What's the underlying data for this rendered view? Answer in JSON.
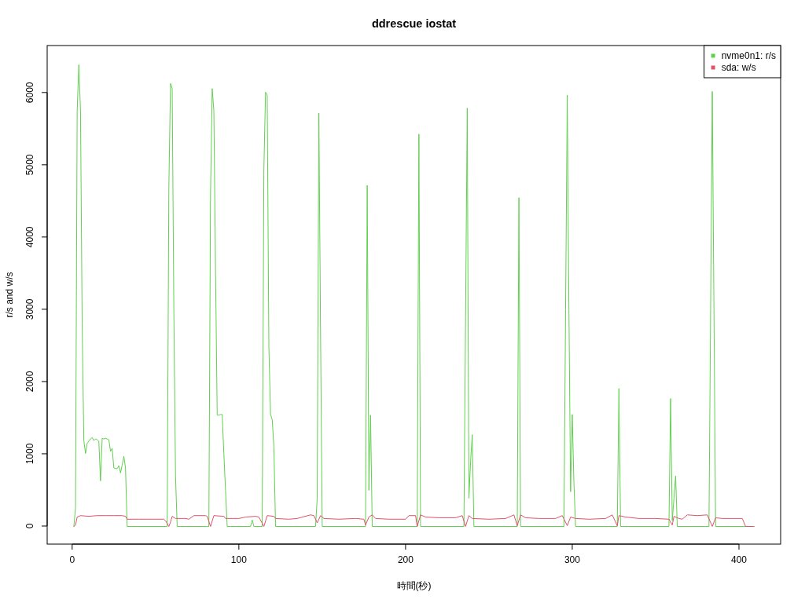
{
  "chart_data": {
    "type": "line",
    "title": "ddrescue iostat",
    "xlabel": "時間(秒)",
    "ylabel": "r/s and w/s",
    "xlim": [
      -15,
      425
    ],
    "ylim": [
      -250,
      6650
    ],
    "xticks": [
      0,
      100,
      200,
      300,
      400
    ],
    "yticks": [
      0,
      1000,
      2000,
      3000,
      4000,
      5000,
      6000
    ],
    "legend": "top right",
    "line_style": "solid",
    "series": [
      {
        "name": "nvme0n1: r/s",
        "color": "#61d04f",
        "x": [
          1,
          2,
          3,
          4,
          5,
          6,
          7,
          8,
          9,
          10,
          11,
          12,
          13,
          14,
          15,
          16,
          17,
          18,
          19,
          20,
          21,
          22,
          23,
          24,
          25,
          26,
          27,
          28,
          29,
          30,
          31,
          32,
          33,
          57,
          58,
          59,
          60,
          61,
          62,
          63,
          81,
          82,
          83,
          84,
          85,
          86,
          87,
          88,
          89,
          90,
          91,
          92,
          93,
          107,
          108,
          109,
          114,
          115,
          116,
          117,
          118,
          119,
          120,
          121,
          122,
          146,
          147,
          148,
          149,
          150,
          176,
          177,
          178,
          179,
          180,
          207,
          208,
          209,
          235,
          236,
          237,
          238,
          239,
          240,
          241,
          267,
          268,
          269,
          295,
          296,
          297,
          298,
          299,
          300,
          301,
          302,
          327,
          328,
          329,
          358,
          359,
          360,
          361,
          362,
          363,
          382,
          383,
          384,
          385,
          386,
          409
        ],
        "values": [
          0,
          250,
          5750,
          6390,
          5750,
          2800,
          1190,
          1010,
          1150,
          1180,
          1210,
          1230,
          1190,
          1210,
          1200,
          1180,
          630,
          1220,
          1210,
          1220,
          1210,
          1200,
          1040,
          1080,
          810,
          800,
          800,
          840,
          740,
          850,
          970,
          810,
          0,
          0,
          4700,
          6130,
          6060,
          3000,
          700,
          0,
          0,
          0,
          4600,
          6060,
          5750,
          3560,
          1540,
          1540,
          1550,
          1550,
          1000,
          500,
          0,
          0,
          90,
          0,
          0,
          4940,
          6010,
          5970,
          2490,
          1550,
          1480,
          1100,
          0,
          0,
          390,
          5720,
          2700,
          0,
          0,
          4720,
          500,
          1540,
          0,
          0,
          5430,
          0,
          0,
          2900,
          5790,
          390,
          900,
          1270,
          0,
          0,
          4550,
          0,
          0,
          3000,
          5970,
          3000,
          480,
          1550,
          600,
          0,
          0,
          1910,
          0,
          0,
          1770,
          80,
          390,
          700,
          0,
          0,
          3000,
          6020,
          3000,
          0,
          0
        ]
      },
      {
        "name": "sda: w/s",
        "color": "#df536b",
        "x": [
          1,
          2,
          3,
          5,
          10,
          15,
          20,
          25,
          30,
          32,
          33,
          40,
          45,
          50,
          55,
          56,
          58,
          59,
          60,
          62,
          68,
          70,
          73,
          80,
          81,
          83,
          85,
          91,
          92,
          100,
          104,
          110,
          112,
          115,
          117,
          121,
          122,
          130,
          135,
          143,
          145,
          147,
          149,
          151,
          160,
          170,
          175,
          176,
          178,
          180,
          182,
          190,
          200,
          202,
          206,
          207,
          209,
          212,
          220,
          230,
          234,
          236,
          238,
          240,
          250,
          260,
          265,
          267,
          269,
          272,
          280,
          290,
          294,
          297,
          299,
          302,
          310,
          320,
          324,
          327,
          328,
          332,
          340,
          350,
          358,
          360,
          361,
          364,
          366,
          369,
          375,
          381,
          384,
          386,
          390,
          400,
          402,
          404,
          409
        ],
        "values": [
          0,
          20,
          130,
          150,
          140,
          150,
          150,
          150,
          150,
          140,
          100,
          100,
          100,
          100,
          100,
          80,
          0,
          60,
          140,
          110,
          110,
          100,
          150,
          150,
          140,
          0,
          150,
          140,
          110,
          110,
          130,
          140,
          130,
          0,
          150,
          140,
          110,
          100,
          110,
          160,
          150,
          50,
          150,
          110,
          100,
          110,
          100,
          20,
          130,
          160,
          110,
          100,
          100,
          150,
          150,
          0,
          160,
          130,
          120,
          120,
          150,
          0,
          150,
          110,
          100,
          110,
          160,
          10,
          160,
          120,
          110,
          110,
          150,
          10,
          130,
          110,
          100,
          110,
          160,
          10,
          150,
          130,
          110,
          110,
          100,
          20,
          140,
          110,
          100,
          160,
          150,
          160,
          0,
          120,
          110,
          110,
          110,
          0,
          0
        ]
      }
    ]
  }
}
